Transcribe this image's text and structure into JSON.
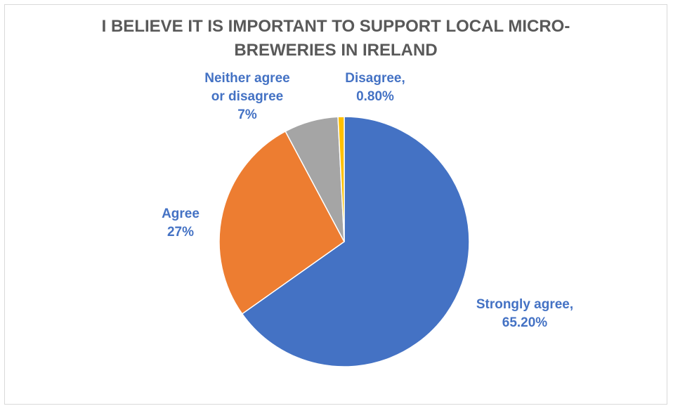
{
  "chart_data": {
    "type": "pie",
    "title": "I BELIEVE IT IS IMPORTANT TO SUPPORT LOCAL MICRO-\nBREWERIES IN IRELAND",
    "categories": [
      "Strongly agree",
      "Agree",
      "Neither agree or disagree",
      "Disagree"
    ],
    "values": [
      65.2,
      27,
      7,
      0.8
    ],
    "data_labels": [
      "Strongly agree,\n65.20%",
      "Agree\n27%",
      "Neither agree\nor disagree\n7%",
      "Disagree,\n0.80%"
    ],
    "colors": [
      "#4472c4",
      "#ed7d31",
      "#a5a5a5",
      "#ffc000"
    ],
    "legend": "none"
  }
}
